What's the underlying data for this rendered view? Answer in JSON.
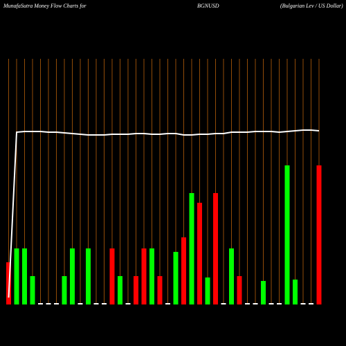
{
  "chart_data": {
    "type": "bar",
    "title": "MunafaSutra  Money Flow  Charts for",
    "symbol": "BGNUSD",
    "subtitle": "(Bulgarian  Lev  / US Dollar)",
    "categories": [
      null,
      null,
      null,
      null,
      null,
      null,
      null,
      null,
      null,
      null,
      null,
      null,
      null,
      null,
      null,
      null,
      null,
      null,
      null,
      null,
      null,
      null,
      null,
      null,
      null,
      null,
      null,
      null,
      null,
      null,
      null,
      null,
      null,
      null,
      null,
      null,
      null,
      null,
      null,
      null
    ],
    "values": [
      61,
      81,
      81,
      41,
      2,
      2,
      2,
      41,
      81,
      2,
      81,
      2,
      2,
      81,
      41,
      2,
      41,
      81,
      81,
      41,
      2,
      76,
      97,
      161,
      147,
      39,
      161,
      2,
      81,
      41,
      2,
      2,
      34,
      2,
      2,
      201,
      36,
      2,
      2,
      201
    ],
    "colors": [
      "#ff0000",
      "#00ff00",
      "#00ff00",
      "#00ff00",
      "#ffffff",
      "#ffffff",
      "#ffffff",
      "#00ff00",
      "#00ff00",
      "#ffffff",
      "#00ff00",
      "#ffffff",
      "#ffffff",
      "#ff0000",
      "#00ff00",
      "#ffffff",
      "#ff0000",
      "#ff0000",
      "#00ff00",
      "#ff0000",
      "#ffffff",
      "#00ff00",
      "#ff0000",
      "#00ff00",
      "#ff0000",
      "#00ff00",
      "#ff0000",
      "#ffffff",
      "#00ff00",
      "#ff0000",
      "#ffffff",
      "#ffffff",
      "#00ff00",
      "#ffffff",
      "#ffffff",
      "#00ff00",
      "#00ff00",
      "#ffffff",
      "#ffffff",
      "#ff0000"
    ],
    "line_values": [
      10,
      249,
      250,
      250,
      250,
      249,
      249,
      248,
      247,
      246,
      245,
      245,
      245,
      246,
      246,
      246,
      247,
      247,
      246,
      246,
      247,
      247,
      245,
      245,
      246,
      246,
      247,
      247,
      249,
      249,
      249,
      250,
      250,
      250,
      249,
      250,
      251,
      252,
      252,
      251
    ],
    "line_color": "#ffffff",
    "grid_color": "#b8600a",
    "ylim": [
      0,
      440
    ]
  }
}
